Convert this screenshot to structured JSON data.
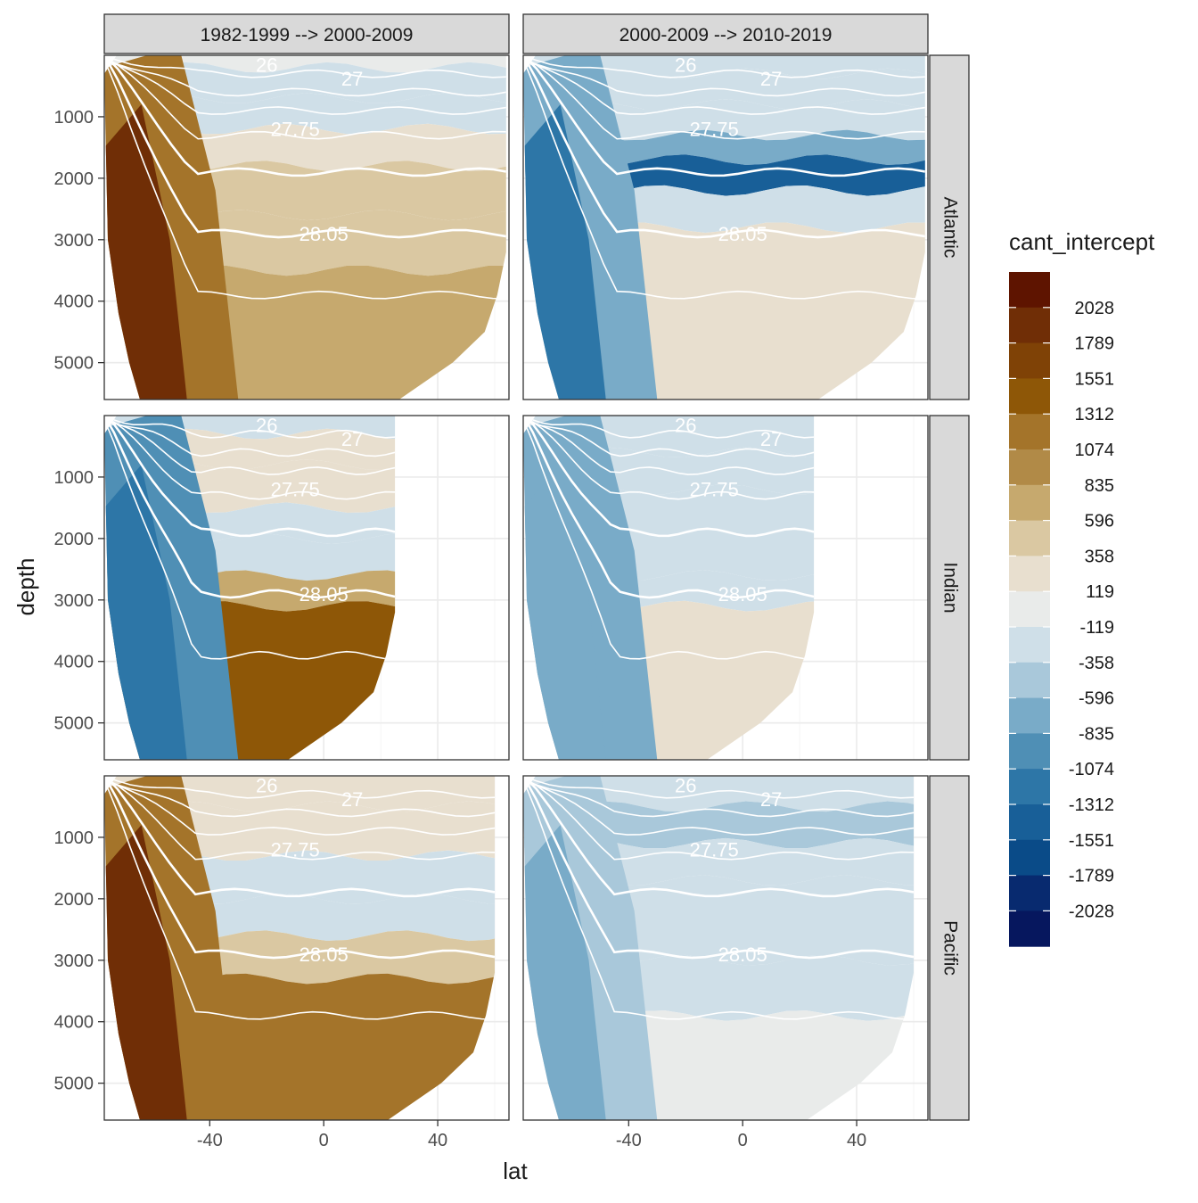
{
  "chart_data": {
    "type": "heatmap",
    "subtype": "filled contour sections, faceted grid",
    "xlabel": "lat",
    "ylabel": "depth",
    "x_ticks": [
      -40,
      0,
      40
    ],
    "y_ticks": [
      1000,
      2000,
      3000,
      4000,
      5000
    ],
    "xlim": [
      -77,
      65
    ],
    "ylim_reversed": [
      0,
      5600
    ],
    "columns": [
      "1982-1999 --> 2000-2009",
      "2000-2009 --> 2010-2019"
    ],
    "rows": [
      "Atlantic",
      "Indian",
      "Pacific"
    ],
    "legend": {
      "title": "cant_intercept",
      "position": "right",
      "labels": [
        "2028",
        "1789",
        "1551",
        "1312",
        "1074",
        "835",
        "596",
        "358",
        "119",
        "-119",
        "-358",
        "-596",
        "-835",
        "-1074",
        "-1312",
        "-1551",
        "-1789",
        "-2028"
      ],
      "colors": [
        "#5e1400",
        "#702e06",
        "#7f4206",
        "#8e5707",
        "#a4742a",
        "#b18a47",
        "#c6a96e",
        "#dac8a2",
        "#e8dfcf",
        "#e9ebea",
        "#cfdfe8",
        "#a9c8da",
        "#79abc8",
        "#4f8fb5",
        "#2d76a7",
        "#185f98",
        "#0a4b88",
        "#082a6f",
        "#06175e"
      ]
    },
    "isopycnal_labels": [
      "26",
      "27",
      "27.75",
      "28.05"
    ],
    "panels": [
      {
        "row": "Atlantic",
        "col": "1982-1999 --> 2000-2009",
        "max_depth": 5600,
        "layers": [
          {
            "depth": 200,
            "value": 200
          },
          {
            "depth": 700,
            "value": 0
          },
          {
            "depth": 1200,
            "value": -200
          },
          {
            "depth": 1800,
            "value": 300
          },
          {
            "depth": 2600,
            "value": 700
          },
          {
            "depth": 3500,
            "value": 500
          },
          {
            "depth": 5600,
            "value": 900
          }
        ],
        "south_band_value": 1400
      },
      {
        "row": "Atlantic",
        "col": "2000-2009 --> 2010-2019",
        "max_depth": 5600,
        "layers": [
          {
            "depth": 300,
            "value": 0
          },
          {
            "depth": 800,
            "value": -200
          },
          {
            "depth": 1300,
            "value": 0
          },
          {
            "depth": 1700,
            "value": -500
          },
          {
            "depth": 2200,
            "value": -1200
          },
          {
            "depth": 2800,
            "value": -200
          },
          {
            "depth": 5600,
            "value": 250
          }
        ],
        "south_band_value": -700
      },
      {
        "row": "Indian",
        "col": "1982-1999 --> 2000-2009",
        "max_depth": 5600,
        "layers": [
          {
            "depth": 300,
            "value": -200
          },
          {
            "depth": 800,
            "value": 300
          },
          {
            "depth": 1500,
            "value": 400
          },
          {
            "depth": 2000,
            "value": 0
          },
          {
            "depth": 2600,
            "value": -200
          },
          {
            "depth": 3100,
            "value": 800
          },
          {
            "depth": 5600,
            "value": 1500
          }
        ],
        "south_band_value": -800
      },
      {
        "row": "Indian",
        "col": "2000-2009 --> 2010-2019",
        "max_depth": 5600,
        "layers": [
          {
            "depth": 600,
            "value": -200
          },
          {
            "depth": 1200,
            "value": -100
          },
          {
            "depth": 2600,
            "value": 0
          },
          {
            "depth": 3100,
            "value": -200
          },
          {
            "depth": 5600,
            "value": 250
          }
        ],
        "south_band_value": -500
      },
      {
        "row": "Pacific",
        "col": "1982-1999 --> 2000-2009",
        "max_depth": 5600,
        "layers": [
          {
            "depth": 500,
            "value": 400
          },
          {
            "depth": 1300,
            "value": 300
          },
          {
            "depth": 2000,
            "value": 0
          },
          {
            "depth": 2600,
            "value": -200
          },
          {
            "depth": 3300,
            "value": 700
          },
          {
            "depth": 5600,
            "value": 1200
          }
        ],
        "south_band_value": 1400
      },
      {
        "row": "Pacific",
        "col": "2000-2009 --> 2010-2019",
        "max_depth": 5600,
        "layers": [
          {
            "depth": 500,
            "value": -200
          },
          {
            "depth": 1100,
            "value": -300
          },
          {
            "depth": 1700,
            "value": -100
          },
          {
            "depth": 3000,
            "value": 0
          },
          {
            "depth": 3900,
            "value": -200
          },
          {
            "depth": 5600,
            "value": 150
          }
        ],
        "south_band_value": -400
      }
    ]
  }
}
